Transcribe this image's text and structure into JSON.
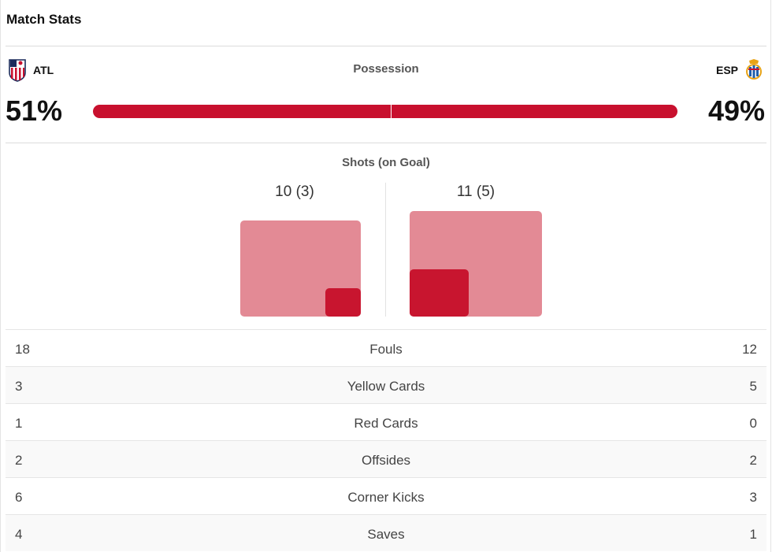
{
  "title": "Match Stats",
  "teams": {
    "home": {
      "abbr": "ATL",
      "crest_icon": "atletico-crest-icon"
    },
    "away": {
      "abbr": "ESP",
      "crest_icon": "espanyol-crest-icon"
    }
  },
  "possession": {
    "label": "Possession",
    "home": "51%",
    "away": "49%",
    "home_value": 51,
    "away_value": 49
  },
  "shots": {
    "label": "Shots (on Goal)",
    "home": "10 (3)",
    "away": "11 (5)",
    "home_total": 10,
    "home_on_goal": 3,
    "away_total": 11,
    "away_on_goal": 5
  },
  "rows": [
    {
      "label": "Fouls",
      "home": "18",
      "away": "12"
    },
    {
      "label": "Yellow Cards",
      "home": "3",
      "away": "5"
    },
    {
      "label": "Red Cards",
      "home": "1",
      "away": "0"
    },
    {
      "label": "Offsides",
      "home": "2",
      "away": "2"
    },
    {
      "label": "Corner Kicks",
      "home": "6",
      "away": "3"
    },
    {
      "label": "Saves",
      "home": "4",
      "away": "1"
    }
  ],
  "colors": {
    "accent": "#c8102e",
    "shots_total": "#e38a95",
    "shots_on_goal": "#c8152f"
  }
}
